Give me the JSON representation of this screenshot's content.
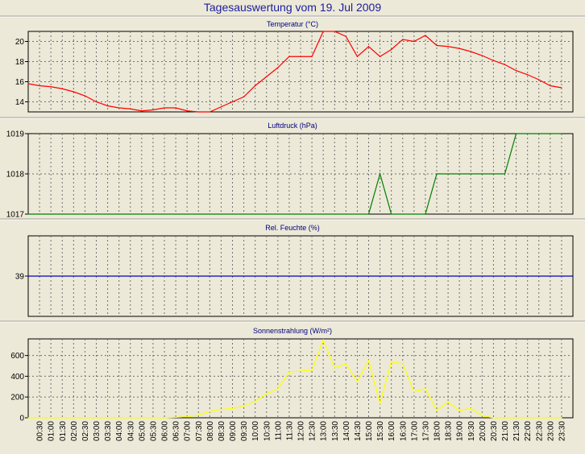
{
  "page_title": "Tagesauswertung vom 19. Jul 2009",
  "chart_data": [
    {
      "type": "line",
      "title": "Temperatur (°C)",
      "xlabel": "",
      "ylabel": "",
      "ylim": [
        13,
        21
      ],
      "yticks": [
        14,
        16,
        18,
        20
      ],
      "color": "#ff0000",
      "x": [
        "00:00",
        "00:30",
        "01:00",
        "01:30",
        "02:00",
        "02:30",
        "03:00",
        "03:30",
        "04:00",
        "04:30",
        "05:00",
        "05:30",
        "06:00",
        "06:30",
        "07:00",
        "07:30",
        "08:00",
        "08:30",
        "09:00",
        "09:30",
        "10:00",
        "10:30",
        "11:00",
        "11:30",
        "12:00",
        "12:30",
        "13:00",
        "13:30",
        "14:00",
        "14:30",
        "15:00",
        "15:30",
        "16:00",
        "16:30",
        "17:00",
        "17:30",
        "18:00",
        "18:30",
        "19:00",
        "19:30",
        "20:00",
        "20:30",
        "21:00",
        "21:30",
        "22:00",
        "22:30",
        "23:00",
        "23:30"
      ],
      "values": [
        15.8,
        15.6,
        15.5,
        15.3,
        15.0,
        14.6,
        14.0,
        13.6,
        13.4,
        13.3,
        13.1,
        13.2,
        13.4,
        13.4,
        13.1,
        13.0,
        13.0,
        13.5,
        14.0,
        14.5,
        15.6,
        16.5,
        17.4,
        18.5,
        18.5,
        18.5,
        21.0,
        21.0,
        20.5,
        18.5,
        19.5,
        18.5,
        19.2,
        20.2,
        20.0,
        20.6,
        19.6,
        19.5,
        19.3,
        19.0,
        18.6,
        18.1,
        17.7,
        17.1,
        16.7,
        16.2,
        15.6,
        15.4
      ]
    },
    {
      "type": "line",
      "title": "Luftdruck (hPa)",
      "xlabel": "",
      "ylabel": "",
      "ylim": [
        1017,
        1019
      ],
      "yticks": [
        1017,
        1018,
        1019
      ],
      "color": "#008000",
      "x": [
        "00:00",
        "00:30",
        "01:00",
        "01:30",
        "02:00",
        "02:30",
        "03:00",
        "03:30",
        "04:00",
        "04:30",
        "05:00",
        "05:30",
        "06:00",
        "06:30",
        "07:00",
        "07:30",
        "08:00",
        "08:30",
        "09:00",
        "09:30",
        "10:00",
        "10:30",
        "11:00",
        "11:30",
        "12:00",
        "12:30",
        "13:00",
        "13:30",
        "14:00",
        "14:30",
        "15:00",
        "15:30",
        "16:00",
        "16:30",
        "17:00",
        "17:30",
        "18:00",
        "18:30",
        "19:00",
        "19:30",
        "20:00",
        "20:30",
        "21:00",
        "21:30",
        "22:00",
        "22:30",
        "23:00",
        "23:30"
      ],
      "values": [
        1017,
        1017,
        1017,
        1017,
        1017,
        1017,
        1017,
        1017,
        1017,
        1017,
        1017,
        1017,
        1017,
        1017,
        1017,
        1017,
        1017,
        1017,
        1017,
        1017,
        1017,
        1017,
        1017,
        1017,
        1017,
        1017,
        1017,
        1017,
        1017,
        1017,
        1017,
        1018,
        1017,
        1017,
        1017,
        1017,
        1018,
        1018,
        1018,
        1018,
        1018,
        1018,
        1018,
        1019,
        1019,
        1019,
        1019,
        1019
      ]
    },
    {
      "type": "line",
      "title": "Rel. Feuchte (%)",
      "xlabel": "",
      "ylabel": "",
      "ylim": [
        38,
        40
      ],
      "yticks": [
        39
      ],
      "color": "#0000c0",
      "x": [
        "00:00",
        "23:59"
      ],
      "values": [
        39,
        39
      ]
    },
    {
      "type": "line",
      "title": "Sonnenstrahlung (W/m²)",
      "xlabel": "",
      "ylabel": "",
      "ylim": [
        0,
        760
      ],
      "yticks": [
        0,
        200,
        400,
        600
      ],
      "color": "#ffff00",
      "x": [
        "00:00",
        "00:30",
        "01:00",
        "01:30",
        "02:00",
        "02:30",
        "03:00",
        "03:30",
        "04:00",
        "04:30",
        "05:00",
        "05:30",
        "06:00",
        "06:30",
        "07:00",
        "07:30",
        "08:00",
        "08:30",
        "09:00",
        "09:30",
        "10:00",
        "10:30",
        "11:00",
        "11:30",
        "12:00",
        "12:30",
        "13:00",
        "13:30",
        "14:00",
        "14:30",
        "15:00",
        "15:30",
        "16:00",
        "16:30",
        "17:00",
        "17:30",
        "18:00",
        "18:30",
        "19:00",
        "19:30",
        "20:00",
        "20:30",
        "21:00",
        "21:30",
        "22:00",
        "22:30",
        "23:00",
        "23:30"
      ],
      "values": [
        0,
        0,
        0,
        0,
        0,
        0,
        0,
        0,
        0,
        0,
        0,
        0,
        0,
        5,
        10,
        25,
        60,
        80,
        90,
        110,
        160,
        230,
        280,
        440,
        450,
        460,
        750,
        480,
        520,
        350,
        550,
        140,
        540,
        520,
        250,
        280,
        70,
        150,
        70,
        90,
        20,
        0,
        0,
        0,
        0,
        0,
        0,
        0
      ]
    }
  ],
  "x_tick_labels": [
    "00:30",
    "01:00",
    "01:30",
    "02:00",
    "02:30",
    "03:00",
    "03:30",
    "04:00",
    "04:30",
    "05:00",
    "05:30",
    "06:00",
    "06:30",
    "07:00",
    "07:30",
    "08:00",
    "08:30",
    "09:00",
    "09:30",
    "10:00",
    "10:30",
    "11:00",
    "11:30",
    "12:00",
    "12:30",
    "13:00",
    "13:30",
    "14:00",
    "14:30",
    "15:00",
    "15:30",
    "16:00",
    "16:30",
    "17:00",
    "17:30",
    "18:00",
    "18:30",
    "19:00",
    "19:30",
    "20:00",
    "20:30",
    "21:00",
    "21:30",
    "22:00",
    "22:30",
    "23:00",
    "23:30"
  ]
}
